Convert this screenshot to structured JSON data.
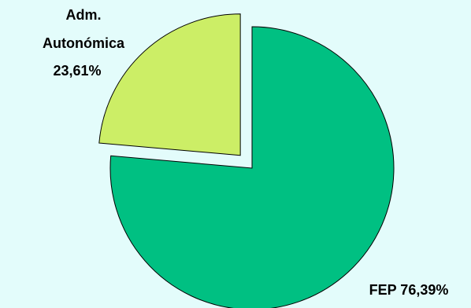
{
  "chart_data": {
    "type": "pie",
    "slices": [
      {
        "label": "FEP",
        "value": 76.39,
        "display": "76,39%",
        "color": "#00c082",
        "exploded": false
      },
      {
        "label": "Adm. Autonómica",
        "value": 23.61,
        "display": "23,61%",
        "color": "#ccee66",
        "exploded": true
      }
    ]
  },
  "labels": {
    "fep": "FEP 76,39%",
    "adm_line1": "Adm.",
    "adm_line2": "Autonómica",
    "adm_line3": "23,61%"
  },
  "colors": {
    "background": "#e3fcfb",
    "slice_outline": "#000000"
  }
}
